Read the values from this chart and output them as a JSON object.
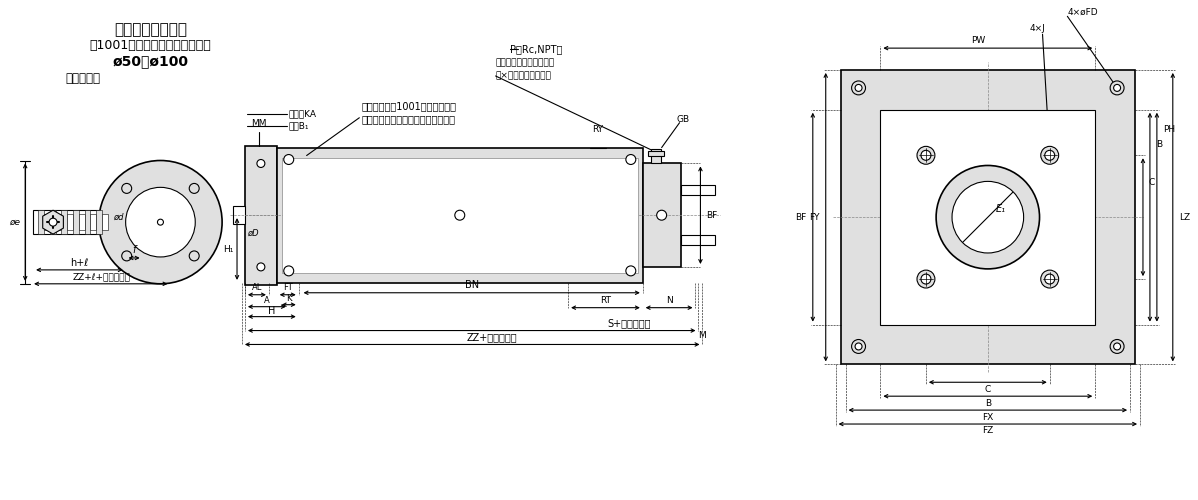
{
  "title_line1": "ロングストローク",
  "title_line2": "（1001ストローク以上の場合）",
  "title_line3": "ø50～ø100",
  "subtitle": "ジャバラ付",
  "bg_color": "#ffffff",
  "line_color": "#000000",
  "gray_fill": "#c8c8c8",
  "light_gray": "#e0e0e0",
  "mid_gray": "#a0a0a0",
  "note_text1": "ストロークが1001以上の場合は",
  "note_text2": "タイロッド補強リングが付きます。",
  "port_label": "P（Rc,NPT）",
  "port_label2": "ヘッド側シリンダポート",
  "port_label3": "２×クッションバルブ"
}
